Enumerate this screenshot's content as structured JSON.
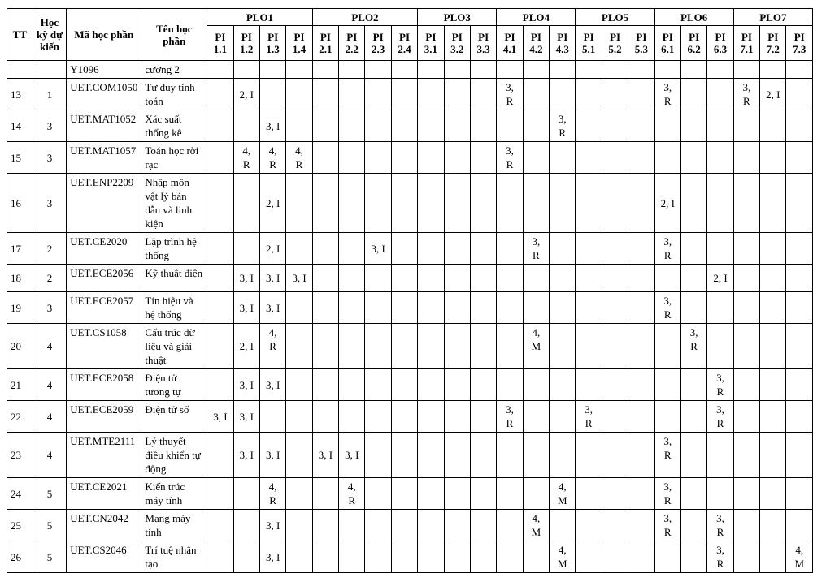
{
  "headers": {
    "tt": "TT",
    "semester": "Học kỳ dự kiến",
    "code": "Mã học phần",
    "name": "Tên học phần"
  },
  "plos": [
    {
      "label": "PLO1",
      "pis": [
        "PI 1.1",
        "PI 1.2",
        "PI 1.3",
        "PI 1.4"
      ]
    },
    {
      "label": "PLO2",
      "pis": [
        "PI 2.1",
        "PI 2.2",
        "PI 2.3",
        "PI 2.4"
      ]
    },
    {
      "label": "PLO3",
      "pis": [
        "PI 3.1",
        "PI 3.2",
        "PI 3.3"
      ]
    },
    {
      "label": "PLO4",
      "pis": [
        "PI 4.1",
        "PI 4.2",
        "PI 4.3"
      ]
    },
    {
      "label": "PLO5",
      "pis": [
        "PI 5.1",
        "PI 5.2",
        "PI 5.3"
      ]
    },
    {
      "label": "PLO6",
      "pis": [
        "PI 6.1",
        "PI 6.2",
        "PI 6.3"
      ]
    },
    {
      "label": "PLO7",
      "pis": [
        "PI 7.1",
        "PI 7.2",
        "PI 7.3"
      ]
    }
  ],
  "rows": [
    {
      "tt": "",
      "semester": "",
      "code": "Y1096",
      "name": "cương 2",
      "values": [
        "",
        "",
        "",
        "",
        "",
        "",
        "",
        "",
        "",
        "",
        "",
        "",
        "",
        "",
        "",
        "",
        "",
        "",
        "",
        "",
        "",
        "",
        ""
      ]
    },
    {
      "tt": "13",
      "semester": "1",
      "code": "UET.COM1050",
      "name": "Tư duy tính toán",
      "values": [
        "",
        "2, I",
        "",
        "",
        "",
        "",
        "",
        "",
        "",
        "",
        "",
        "3, R",
        "",
        "",
        "",
        "",
        "",
        "3, R",
        "",
        "",
        "3, R",
        "2, I",
        ""
      ]
    },
    {
      "tt": "14",
      "semester": "3",
      "code": "UET.MAT1052",
      "name": "Xác suất thống kê",
      "values": [
        "",
        "",
        "3, I",
        "",
        "",
        "",
        "",
        "",
        "",
        "",
        "",
        "",
        "",
        "3, R",
        "",
        "",
        "",
        "",
        "",
        "",
        "",
        "",
        ""
      ]
    },
    {
      "tt": "15",
      "semester": "3",
      "code": "UET.MAT1057",
      "name": "Toán học rời rạc",
      "values": [
        "",
        "4, R",
        "4, R",
        "4, R",
        "",
        "",
        "",
        "",
        "",
        "",
        "",
        "3, R",
        "",
        "",
        "",
        "",
        "",
        "",
        "",
        "",
        "",
        "",
        ""
      ]
    },
    {
      "tt": "16",
      "semester": "3",
      "code": "UET.ENP2209",
      "name": "Nhập môn vật lý bán dẫn và linh kiện",
      "values": [
        "",
        "",
        "2, I",
        "",
        "",
        "",
        "",
        "",
        "",
        "",
        "",
        "",
        "",
        "",
        "",
        "",
        "",
        "2, I",
        "",
        "",
        "",
        "",
        ""
      ]
    },
    {
      "tt": "17",
      "semester": "2",
      "code": "UET.CE2020",
      "name": "Lập trình hệ thống",
      "values": [
        "",
        "",
        "2, I",
        "",
        "",
        "",
        "3, I",
        "",
        "",
        "",
        "",
        "",
        "3, R",
        "",
        "",
        "",
        "",
        "3, R",
        "",
        "",
        "",
        "",
        ""
      ]
    },
    {
      "tt": "18",
      "semester": "2",
      "code": "UET.ECE2056",
      "name": "Kỹ thuật điện",
      "values": [
        "",
        "3, I",
        "3, I",
        "3, I",
        "",
        "",
        "",
        "",
        "",
        "",
        "",
        "",
        "",
        "",
        "",
        "",
        "",
        "",
        "",
        "2, I",
        "",
        "",
        ""
      ]
    },
    {
      "tt": "19",
      "semester": "3",
      "code": "UET.ECE2057",
      "name": "Tín hiệu và hệ thống",
      "values": [
        "",
        "3, I",
        "3, I",
        "",
        "",
        "",
        "",
        "",
        "",
        "",
        "",
        "",
        "",
        "",
        "",
        "",
        "",
        "3, R",
        "",
        "",
        "",
        "",
        ""
      ]
    },
    {
      "tt": "20",
      "semester": "4",
      "code": "UET.CS1058",
      "name": "Cấu trúc dữ liệu và giải thuật",
      "values": [
        "",
        "2, I",
        "4, R",
        "",
        "",
        "",
        "",
        "",
        "",
        "",
        "",
        "",
        "4, M",
        "",
        "",
        "",
        "",
        "",
        "3, R",
        "",
        "",
        "",
        ""
      ]
    },
    {
      "tt": "21",
      "semester": "4",
      "code": "UET.ECE2058",
      "name": "Điện tử tương tự",
      "values": [
        "",
        "3, I",
        "3, I",
        "",
        "",
        "",
        "",
        "",
        "",
        "",
        "",
        "",
        "",
        "",
        "",
        "",
        "",
        "",
        "",
        "3, R",
        "",
        "",
        ""
      ]
    },
    {
      "tt": "22",
      "semester": "4",
      "code": "UET.ECE2059",
      "name": "Điện tử số",
      "values": [
        "3, I",
        "3, I",
        "",
        "",
        "",
        "",
        "",
        "",
        "",
        "",
        "",
        "3, R",
        "",
        "",
        "3, R",
        "",
        "",
        "",
        "",
        "3, R",
        "",
        "",
        ""
      ]
    },
    {
      "tt": "23",
      "semester": "4",
      "code": "UET.MTE2111",
      "name": "Lý thuyết điều khiển tự động",
      "values": [
        "",
        "3, I",
        "3, I",
        "",
        "3, I",
        "3, I",
        "",
        "",
        "",
        "",
        "",
        "",
        "",
        "",
        "",
        "",
        "",
        "3, R",
        "",
        "",
        "",
        "",
        ""
      ]
    },
    {
      "tt": "24",
      "semester": "5",
      "code": "UET.CE2021",
      "name": "Kiến trúc máy tính",
      "values": [
        "",
        "",
        "4, R",
        "",
        "",
        "4, R",
        "",
        "",
        "",
        "",
        "",
        "",
        "",
        "4, M",
        "",
        "",
        "",
        "3, R",
        "",
        "",
        "",
        "",
        ""
      ]
    },
    {
      "tt": "25",
      "semester": "5",
      "code": "UET.CN2042",
      "name": "Mạng máy tính",
      "values": [
        "",
        "",
        "3, I",
        "",
        "",
        "",
        "",
        "",
        "",
        "",
        "",
        "",
        "4, M",
        "",
        "",
        "",
        "",
        "3, R",
        "",
        "3, R",
        "",
        "",
        ""
      ]
    },
    {
      "tt": "26",
      "semester": "5",
      "code": "UET.CS2046",
      "name": "Trí tuệ nhân tạo",
      "values": [
        "",
        "",
        "3, I",
        "",
        "",
        "",
        "",
        "",
        "",
        "",
        "",
        "",
        "",
        "4, M",
        "",
        "",
        "",
        "",
        "",
        "3, R",
        "",
        "",
        "4, M"
      ]
    }
  ]
}
